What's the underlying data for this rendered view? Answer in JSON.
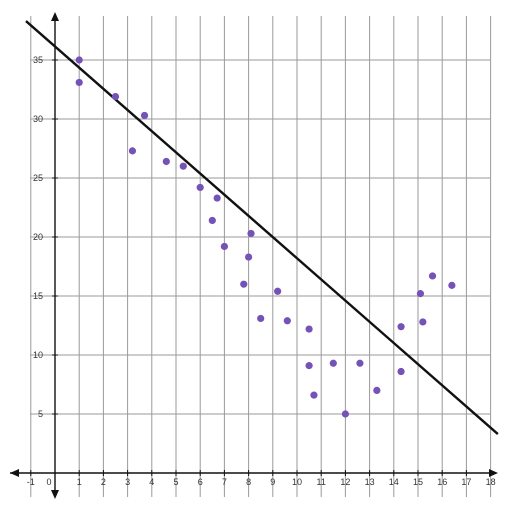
{
  "chart_data": {
    "type": "scatter",
    "title": "",
    "xlabel": "",
    "ylabel": "",
    "xlim": [
      -1,
      18
    ],
    "ylim": [
      -2,
      38
    ],
    "grid": true,
    "x_ticks": [
      -1,
      0,
      1,
      2,
      3,
      4,
      5,
      6,
      7,
      8,
      9,
      10,
      11,
      12,
      13,
      14,
      15,
      16,
      17,
      18
    ],
    "x_tick_labels": [
      "-1",
      "0",
      "1",
      "2",
      "3",
      "4",
      "5",
      "6",
      "7",
      "8",
      "9",
      "10",
      "11",
      "12",
      "13",
      "14",
      "15",
      "16",
      "17",
      "18"
    ],
    "y_ticks": [
      5,
      10,
      15,
      20,
      25,
      30,
      35
    ],
    "y_tick_labels": [
      "5",
      "10",
      "15",
      "20",
      "25",
      "30",
      "35"
    ],
    "point_color": "#7452b8",
    "line_color": "#111111",
    "points": [
      {
        "x": 1.0,
        "y": 35.0
      },
      {
        "x": 1.0,
        "y": 33.1
      },
      {
        "x": 2.5,
        "y": 31.9
      },
      {
        "x": 3.2,
        "y": 27.3
      },
      {
        "x": 3.7,
        "y": 30.3
      },
      {
        "x": 4.6,
        "y": 26.4
      },
      {
        "x": 5.3,
        "y": 26.0
      },
      {
        "x": 6.0,
        "y": 24.2
      },
      {
        "x": 6.5,
        "y": 21.4
      },
      {
        "x": 6.7,
        "y": 23.3
      },
      {
        "x": 7.0,
        "y": 19.2
      },
      {
        "x": 7.8,
        "y": 16.0
      },
      {
        "x": 8.0,
        "y": 18.3
      },
      {
        "x": 8.1,
        "y": 20.3
      },
      {
        "x": 8.5,
        "y": 13.1
      },
      {
        "x": 9.2,
        "y": 15.4
      },
      {
        "x": 9.6,
        "y": 12.9
      },
      {
        "x": 10.5,
        "y": 12.2
      },
      {
        "x": 10.5,
        "y": 9.1
      },
      {
        "x": 10.7,
        "y": 6.6
      },
      {
        "x": 11.5,
        "y": 9.3
      },
      {
        "x": 12.0,
        "y": 5.0
      },
      {
        "x": 12.6,
        "y": 9.3
      },
      {
        "x": 13.3,
        "y": 7.0
      },
      {
        "x": 14.3,
        "y": 8.6
      },
      {
        "x": 14.3,
        "y": 12.4
      },
      {
        "x": 15.1,
        "y": 15.2
      },
      {
        "x": 15.2,
        "y": 12.8
      },
      {
        "x": 15.6,
        "y": 16.7
      },
      {
        "x": 16.4,
        "y": 15.9
      }
    ],
    "trend_line": {
      "x": [
        -1.2,
        18.3
      ],
      "y": [
        38.3,
        3.3
      ]
    }
  }
}
